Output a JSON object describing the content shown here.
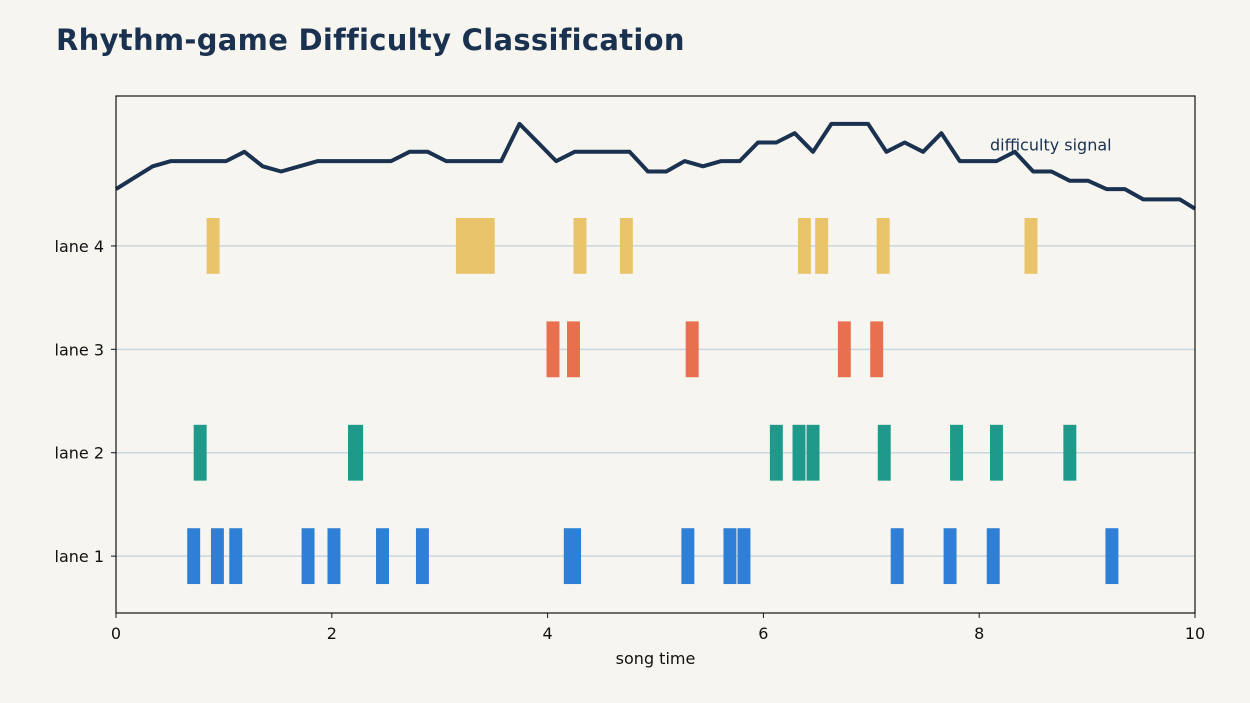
{
  "chart_data": {
    "type": "timeline",
    "title": "Rhythm-game Difficulty Classification",
    "xlabel": "song time",
    "ylabel": "",
    "xlim": [
      0,
      10
    ],
    "xticks": [
      "0",
      "2",
      "4",
      "6",
      "8",
      "10"
    ],
    "annotation": "difficulty signal",
    "grid": "horizontal",
    "lanes": [
      {
        "name": "lane 1",
        "color": "#2f7fd6",
        "notes": [
          [
            0.66,
            0.78
          ],
          [
            0.88,
            1.0
          ],
          [
            1.05,
            1.17
          ],
          [
            1.72,
            1.84
          ],
          [
            1.96,
            2.08
          ],
          [
            2.41,
            2.53
          ],
          [
            2.78,
            2.9
          ],
          [
            4.15,
            4.31
          ],
          [
            5.24,
            5.36
          ],
          [
            5.63,
            5.75
          ],
          [
            5.76,
            5.88
          ],
          [
            7.18,
            7.3
          ],
          [
            7.67,
            7.79
          ],
          [
            8.07,
            8.19
          ],
          [
            9.17,
            9.29
          ]
        ]
      },
      {
        "name": "lane 2",
        "color": "#1f9a8a",
        "notes": [
          [
            0.72,
            0.84
          ],
          [
            2.15,
            2.29
          ],
          [
            6.06,
            6.18
          ],
          [
            6.27,
            6.39
          ],
          [
            6.4,
            6.52
          ],
          [
            7.06,
            7.18
          ],
          [
            7.73,
            7.85
          ],
          [
            8.1,
            8.22
          ],
          [
            8.78,
            8.9
          ]
        ]
      },
      {
        "name": "lane 3",
        "color": "#e8704f",
        "notes": [
          [
            3.99,
            4.11
          ],
          [
            4.18,
            4.3
          ],
          [
            5.28,
            5.4
          ],
          [
            6.69,
            6.81
          ],
          [
            6.99,
            7.11
          ]
        ]
      },
      {
        "name": "lane 4",
        "color": "#e9c46a",
        "notes": [
          [
            0.84,
            0.96
          ],
          [
            3.15,
            3.51
          ],
          [
            4.24,
            4.36
          ],
          [
            4.67,
            4.79
          ],
          [
            6.32,
            6.44
          ],
          [
            6.48,
            6.6
          ],
          [
            7.05,
            7.17
          ],
          [
            8.42,
            8.54
          ]
        ]
      }
    ],
    "difficulty_signal": {
      "color": "#1a3150",
      "x": [
        0,
        0.17,
        0.34,
        0.51,
        0.68,
        0.85,
        1.02,
        1.19,
        1.36,
        1.53,
        1.7,
        1.87,
        2.04,
        2.21,
        2.38,
        2.55,
        2.72,
        2.89,
        3.06,
        3.23,
        3.4,
        3.57,
        3.74,
        3.91,
        4.08,
        4.25,
        4.42,
        4.59,
        4.76,
        4.93,
        5.1,
        5.27,
        5.44,
        5.61,
        5.78,
        5.95,
        6.12,
        6.29,
        6.46,
        6.63,
        6.8,
        6.97,
        7.14,
        7.31,
        7.48,
        7.65,
        7.82,
        7.99,
        8.16,
        8.33,
        8.5,
        8.67,
        8.84,
        9.01,
        9.18,
        9.35,
        9.52,
        9.69,
        9.86,
        10.0
      ],
      "y": [
        4.55,
        4.66,
        4.77,
        4.82,
        4.82,
        4.82,
        4.82,
        4.91,
        4.77,
        4.72,
        4.77,
        4.82,
        4.82,
        4.82,
        4.82,
        4.82,
        4.91,
        4.91,
        4.82,
        4.82,
        4.82,
        4.82,
        5.18,
        5.0,
        4.82,
        4.91,
        4.91,
        4.91,
        4.91,
        4.72,
        4.72,
        4.82,
        4.77,
        4.82,
        4.82,
        5.0,
        5.0,
        5.09,
        4.91,
        5.18,
        5.18,
        5.18,
        4.91,
        5.0,
        4.91,
        5.09,
        4.82,
        4.82,
        4.82,
        4.91,
        4.72,
        4.72,
        4.63,
        4.63,
        4.55,
        4.55,
        4.45,
        4.45,
        4.45,
        4.36
      ]
    }
  }
}
